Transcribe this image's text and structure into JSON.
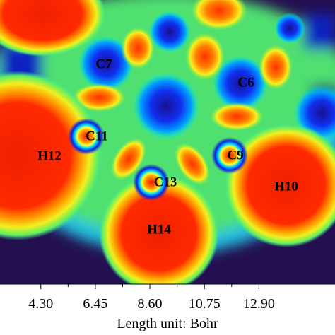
{
  "chart_data": {
    "type": "heatmap",
    "xlabel": "Length unit: Bohr",
    "xlim": [
      2.69,
      15.9
    ],
    "xticks": [
      {
        "value": 4.3,
        "label": "4.30"
      },
      {
        "value": 6.45,
        "label": "6.45"
      },
      {
        "value": 8.6,
        "label": "8.60"
      },
      {
        "value": 10.75,
        "label": "10.75"
      },
      {
        "value": 12.9,
        "label": "12.90"
      }
    ],
    "annotations": [
      "C7",
      "C6",
      "C11",
      "H12",
      "C9",
      "C13",
      "H10",
      "H14"
    ]
  }
}
